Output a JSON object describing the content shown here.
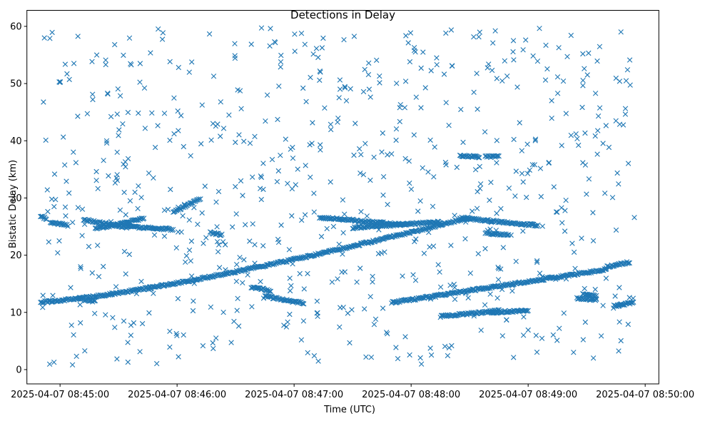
{
  "chart_data": {
    "type": "scatter",
    "title": "Detections in Delay",
    "xlabel": "Time (UTC)",
    "ylabel": "Bistatic Delay (km)",
    "marker": "x",
    "color": "#1f77b4",
    "grid": false,
    "x_unit": "time",
    "xlim": [
      "2025-04-07 08:44:43",
      "2025-04-07 08:50:07"
    ],
    "ylim": [
      -2.5,
      62.8
    ],
    "x_ticks": [
      "2025-04-07 08:45:00",
      "2025-04-07 08:46:00",
      "2025-04-07 08:47:00",
      "2025-04-07 08:48:00",
      "2025-04-07 08:49:00",
      "2025-04-07 08:50:00"
    ],
    "y_ticks": [
      0,
      10,
      20,
      30,
      40,
      50,
      60
    ],
    "tracks": [
      {
        "from": [
          "2025-04-07 08:44:50",
          11.8
        ],
        "to": [
          "2025-04-07 08:48:30",
          26.6
        ],
        "curve": 1.3
      },
      {
        "from": [
          "2025-04-07 08:47:50",
          11.7
        ],
        "to": [
          "2025-04-07 08:49:40",
          17.5
        ]
      },
      {
        "from": [
          "2025-04-07 08:49:40",
          17.9
        ],
        "to": [
          "2025-04-07 08:49:52",
          18.8
        ]
      },
      {
        "from": [
          "2025-04-07 08:44:50",
          26.8
        ],
        "to": [
          "2025-04-07 08:44:53",
          26.4
        ]
      },
      {
        "from": [
          "2025-04-07 08:44:55",
          25.8
        ],
        "to": [
          "2025-04-07 08:45:04",
          25.2
        ]
      },
      {
        "from": [
          "2025-04-07 08:45:12",
          26.2
        ],
        "to": [
          "2025-04-07 08:45:35",
          24.8
        ]
      },
      {
        "from": [
          "2025-04-07 08:45:18",
          24.6
        ],
        "to": [
          "2025-04-07 08:45:43",
          26.4
        ]
      },
      {
        "from": [
          "2025-04-07 08:45:35",
          25.0
        ],
        "to": [
          "2025-04-07 08:45:58",
          24.5
        ]
      },
      {
        "from": [
          "2025-04-07 08:45:58",
          27.5
        ],
        "to": [
          "2025-04-07 08:46:12",
          29.9
        ]
      },
      {
        "from": [
          "2025-04-07 08:47:13",
          26.6
        ],
        "to": [
          "2025-04-07 08:47:58",
          25.3
        ]
      },
      {
        "from": [
          "2025-04-07 08:47:30",
          24.8
        ],
        "to": [
          "2025-04-07 08:48:15",
          25.8
        ]
      },
      {
        "from": [
          "2025-04-07 08:48:25",
          26.5
        ],
        "to": [
          "2025-04-07 08:49:05",
          25.2
        ]
      },
      {
        "from": [
          "2025-04-07 08:48:38",
          23.9
        ],
        "to": [
          "2025-04-07 08:48:50",
          23.5
        ]
      },
      {
        "from": [
          "2025-04-07 08:45:10",
          12.4
        ],
        "to": [
          "2025-04-07 08:45:18",
          11.9
        ]
      },
      {
        "from": [
          "2025-04-07 08:46:17",
          23.9
        ],
        "to": [
          "2025-04-07 08:46:23",
          23.6
        ]
      },
      {
        "from": [
          "2025-04-07 08:46:38",
          14.4
        ],
        "to": [
          "2025-04-07 08:46:48",
          13.8
        ]
      },
      {
        "from": [
          "2025-04-07 08:46:45",
          12.8
        ],
        "to": [
          "2025-04-07 08:47:05",
          11.6
        ]
      },
      {
        "from": [
          "2025-04-07 08:48:15",
          9.3
        ],
        "to": [
          "2025-04-07 08:48:45",
          10.3
        ]
      },
      {
        "from": [
          "2025-04-07 08:48:40",
          10.0
        ],
        "to": [
          "2025-04-07 08:49:00",
          10.3
        ]
      },
      {
        "from": [
          "2025-04-07 08:48:25",
          37.3
        ],
        "to": [
          "2025-04-07 08:48:35",
          37.2
        ]
      },
      {
        "from": [
          "2025-04-07 08:48:38",
          37.2
        ],
        "to": [
          "2025-04-07 08:48:45",
          37.3
        ]
      },
      {
        "from": [
          "2025-04-07 08:49:28",
          13.2
        ],
        "to": [
          "2025-04-07 08:49:35",
          12.9
        ]
      },
      {
        "from": [
          "2025-04-07 08:49:25",
          12.5
        ],
        "to": [
          "2025-04-07 08:49:35",
          12.2
        ]
      },
      {
        "from": [
          "2025-04-07 08:49:44",
          11.1
        ],
        "to": [
          "2025-04-07 08:49:54",
          11.7
        ]
      }
    ],
    "scatter": {
      "start": "2025-04-07 08:44:50",
      "end": "2025-04-07 08:49:55",
      "count": 700,
      "ymin": 0.5,
      "ymax": 59.8
    }
  }
}
